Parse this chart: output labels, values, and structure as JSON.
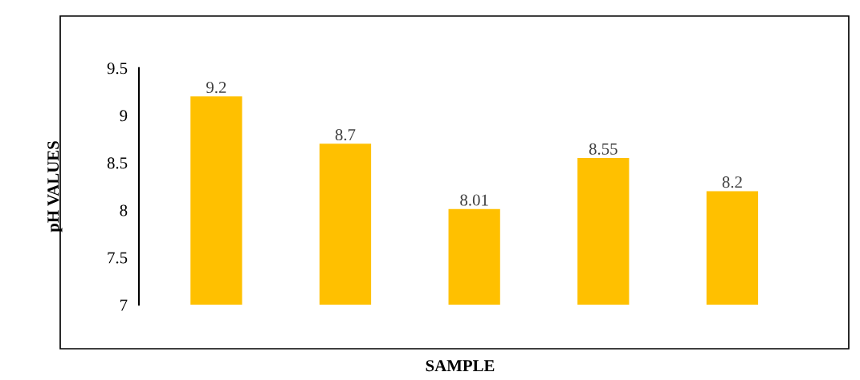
{
  "chart_data": {
    "type": "bar",
    "xlabel": "SAMPLE",
    "ylabel": "pH VALUES",
    "categories": [
      null,
      null,
      null,
      null,
      null
    ],
    "series": [
      {
        "color": "#ffc000",
        "values": [
          9.2,
          8.7,
          8.01,
          8.55,
          8.2
        ]
      }
    ],
    "ylim": [
      7,
      9.5
    ],
    "yticks": [
      7,
      7.5,
      8,
      8.5,
      9,
      9.5
    ],
    "data_labels": true
  }
}
